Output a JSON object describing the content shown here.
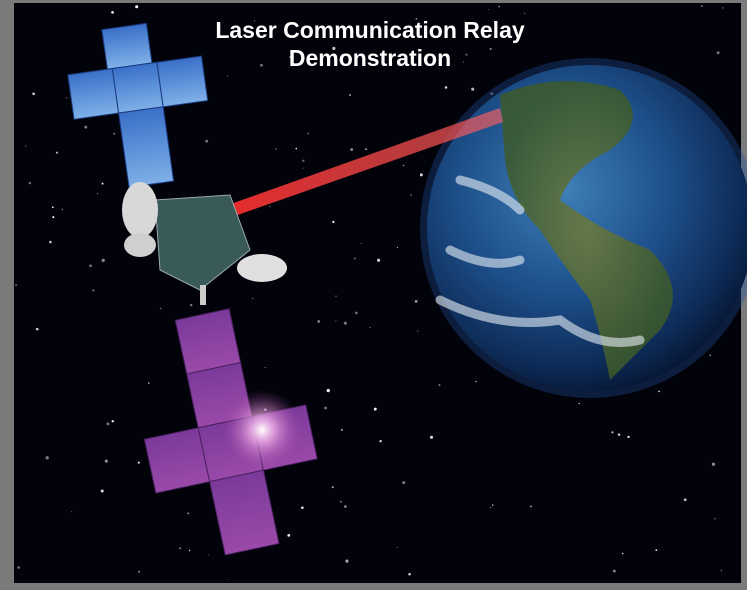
{
  "title": "Laser Communication Relay Demonstration"
}
